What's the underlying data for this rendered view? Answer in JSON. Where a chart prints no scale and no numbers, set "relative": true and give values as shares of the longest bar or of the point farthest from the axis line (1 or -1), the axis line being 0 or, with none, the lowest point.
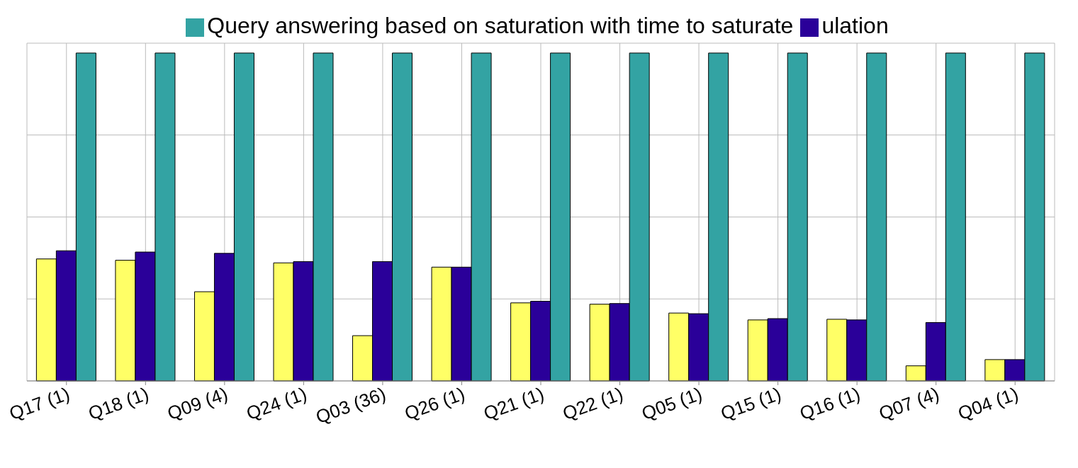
{
  "chart_data": {
    "type": "bar",
    "relative": true,
    "grid": true,
    "legend": "top",
    "categories": [
      "Q17 (1)",
      "Q18 (1)",
      "Q09 (4)",
      "Q24 (1)",
      "Q03 (36)",
      "Q26 (1)",
      "Q21 (1)",
      "Q22 (1)",
      "Q05 (1)",
      "Q15 (1)",
      "Q16 (1)",
      "Q07 (4)",
      "Q04 (1)"
    ],
    "series": [
      {
        "color": "#ffff66",
        "values": [
          0.372,
          0.368,
          0.272,
          0.36,
          0.138,
          0.347,
          0.238,
          0.234,
          0.207,
          0.186,
          0.188,
          0.046,
          0.065
        ]
      },
      {
        "name": "ulation",
        "color": "#2a0099",
        "values": [
          0.397,
          0.393,
          0.389,
          0.364,
          0.364,
          0.347,
          0.243,
          0.236,
          0.205,
          0.19,
          0.186,
          0.178,
          0.065
        ]
      },
      {
        "name": "Query answering based on saturation with time to saturate",
        "color": "#33a3a3",
        "values": [
          1,
          1,
          1,
          1,
          1,
          1,
          1,
          1,
          1,
          1,
          1,
          1,
          1
        ]
      }
    ]
  }
}
